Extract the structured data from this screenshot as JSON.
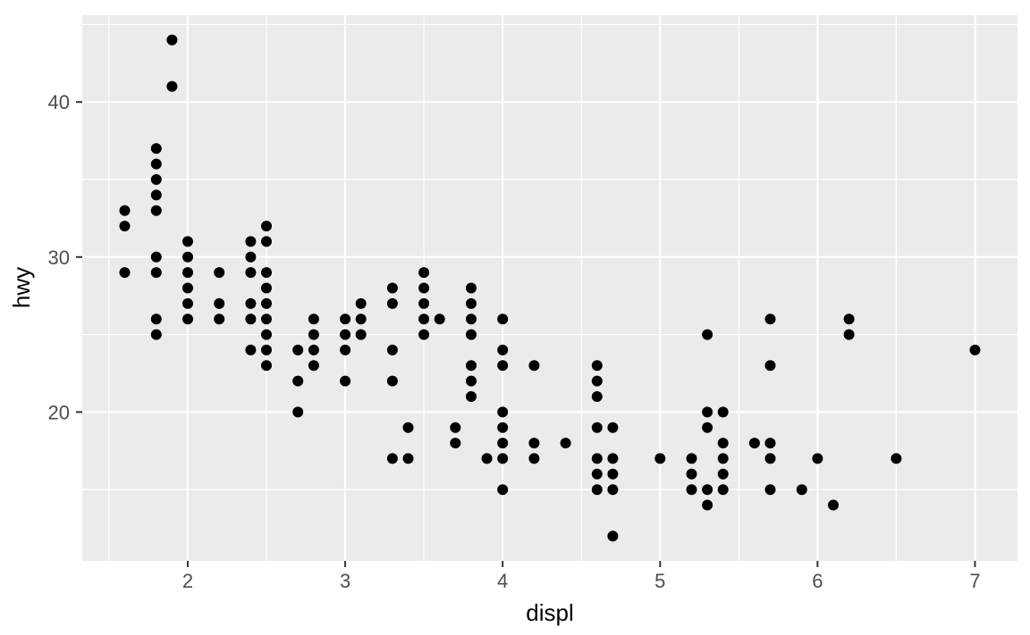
{
  "chart_data": {
    "type": "scatter",
    "title": "",
    "xlabel": "displ",
    "ylabel": "hwy",
    "x_ticks": [
      2,
      3,
      4,
      5,
      6,
      7
    ],
    "y_ticks": [
      20,
      30,
      40
    ],
    "x_minor_ticks": [
      1.5,
      2.5,
      3.5,
      4.5,
      5.5,
      6.5
    ],
    "y_minor_ticks": [
      15,
      25,
      35,
      45
    ],
    "xlim": [
      1.33,
      7.27
    ],
    "ylim": [
      10.4,
      45.6
    ],
    "grid": "major-and-minor-white",
    "legend": "none",
    "theme": {
      "panel_bg": "#EBEBEB",
      "grid_color": "#FFFFFF",
      "point_color": "#000000",
      "tick_label_color": "#4D4D4D",
      "axis_title_color": "#000000",
      "tick_mark_color": "#333333",
      "outer_bg": "#FFFFFF"
    },
    "points": [
      [
        1.6,
        29
      ],
      [
        1.6,
        32
      ],
      [
        1.6,
        33
      ],
      [
        1.8,
        25
      ],
      [
        1.8,
        26
      ],
      [
        1.8,
        29
      ],
      [
        1.8,
        30
      ],
      [
        1.8,
        33
      ],
      [
        1.8,
        34
      ],
      [
        1.8,
        35
      ],
      [
        1.8,
        36
      ],
      [
        1.8,
        37
      ],
      [
        1.9,
        41
      ],
      [
        1.9,
        44
      ],
      [
        2.0,
        26
      ],
      [
        2.0,
        27
      ],
      [
        2.0,
        28
      ],
      [
        2.0,
        29
      ],
      [
        2.0,
        30
      ],
      [
        2.0,
        31
      ],
      [
        2.2,
        26
      ],
      [
        2.2,
        27
      ],
      [
        2.2,
        29
      ],
      [
        2.4,
        24
      ],
      [
        2.4,
        26
      ],
      [
        2.4,
        27
      ],
      [
        2.4,
        29
      ],
      [
        2.4,
        30
      ],
      [
        2.4,
        31
      ],
      [
        2.5,
        23
      ],
      [
        2.5,
        24
      ],
      [
        2.5,
        25
      ],
      [
        2.5,
        26
      ],
      [
        2.5,
        27
      ],
      [
        2.5,
        28
      ],
      [
        2.5,
        29
      ],
      [
        2.5,
        31
      ],
      [
        2.5,
        32
      ],
      [
        2.7,
        20
      ],
      [
        2.7,
        22
      ],
      [
        2.7,
        24
      ],
      [
        2.8,
        23
      ],
      [
        2.8,
        24
      ],
      [
        2.8,
        25
      ],
      [
        2.8,
        26
      ],
      [
        3.0,
        22
      ],
      [
        3.0,
        24
      ],
      [
        3.0,
        25
      ],
      [
        3.0,
        26
      ],
      [
        3.1,
        25
      ],
      [
        3.1,
        26
      ],
      [
        3.1,
        27
      ],
      [
        3.3,
        17
      ],
      [
        3.3,
        22
      ],
      [
        3.3,
        24
      ],
      [
        3.3,
        27
      ],
      [
        3.3,
        28
      ],
      [
        3.4,
        17
      ],
      [
        3.4,
        19
      ],
      [
        3.5,
        25
      ],
      [
        3.5,
        26
      ],
      [
        3.5,
        27
      ],
      [
        3.5,
        28
      ],
      [
        3.5,
        29
      ],
      [
        3.6,
        26
      ],
      [
        3.7,
        18
      ],
      [
        3.7,
        19
      ],
      [
        3.8,
        21
      ],
      [
        3.8,
        22
      ],
      [
        3.8,
        23
      ],
      [
        3.8,
        25
      ],
      [
        3.8,
        26
      ],
      [
        3.8,
        27
      ],
      [
        3.8,
        28
      ],
      [
        3.9,
        17
      ],
      [
        4.0,
        15
      ],
      [
        4.0,
        17
      ],
      [
        4.0,
        18
      ],
      [
        4.0,
        19
      ],
      [
        4.0,
        20
      ],
      [
        4.0,
        23
      ],
      [
        4.0,
        24
      ],
      [
        4.0,
        26
      ],
      [
        4.2,
        17
      ],
      [
        4.2,
        18
      ],
      [
        4.2,
        23
      ],
      [
        4.4,
        18
      ],
      [
        4.6,
        15
      ],
      [
        4.6,
        16
      ],
      [
        4.6,
        17
      ],
      [
        4.6,
        19
      ],
      [
        4.6,
        21
      ],
      [
        4.6,
        22
      ],
      [
        4.6,
        23
      ],
      [
        4.7,
        12
      ],
      [
        4.7,
        15
      ],
      [
        4.7,
        16
      ],
      [
        4.7,
        17
      ],
      [
        4.7,
        19
      ],
      [
        5.0,
        17
      ],
      [
        5.2,
        15
      ],
      [
        5.2,
        16
      ],
      [
        5.2,
        17
      ],
      [
        5.3,
        14
      ],
      [
        5.3,
        15
      ],
      [
        5.3,
        19
      ],
      [
        5.3,
        20
      ],
      [
        5.3,
        25
      ],
      [
        5.4,
        15
      ],
      [
        5.4,
        16
      ],
      [
        5.4,
        17
      ],
      [
        5.4,
        18
      ],
      [
        5.4,
        20
      ],
      [
        5.6,
        18
      ],
      [
        5.7,
        15
      ],
      [
        5.7,
        17
      ],
      [
        5.7,
        18
      ],
      [
        5.7,
        23
      ],
      [
        5.7,
        26
      ],
      [
        5.9,
        15
      ],
      [
        6.0,
        17
      ],
      [
        6.1,
        14
      ],
      [
        6.2,
        25
      ],
      [
        6.2,
        26
      ],
      [
        6.5,
        17
      ],
      [
        7.0,
        24
      ]
    ]
  }
}
